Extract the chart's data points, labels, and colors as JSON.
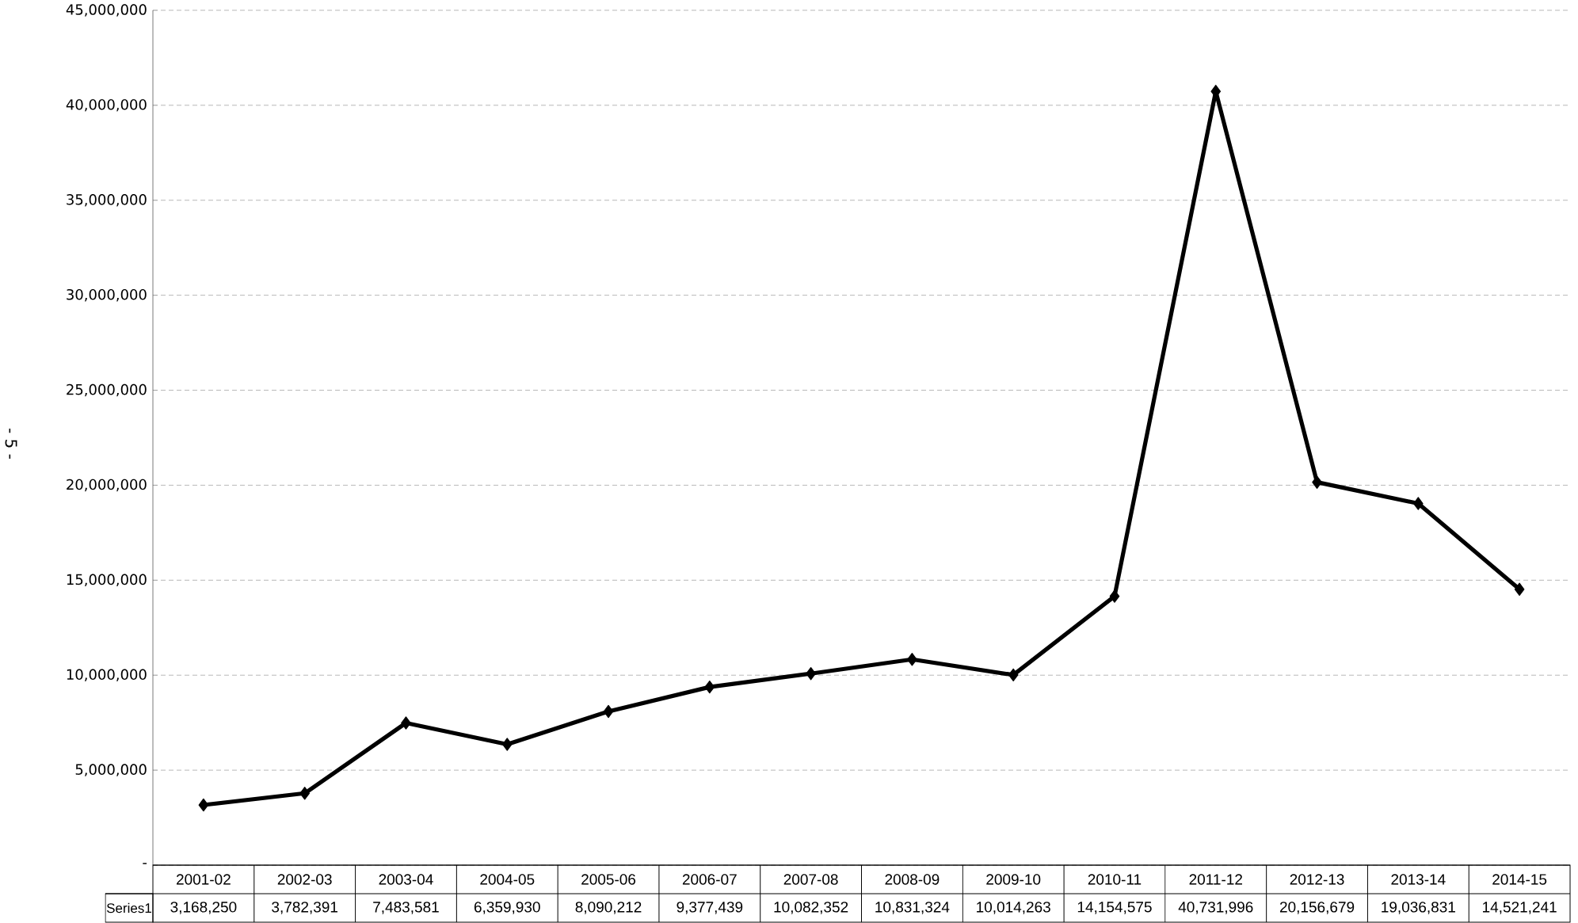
{
  "chart_data": {
    "type": "line",
    "categories": [
      "2001-02",
      "2002-03",
      "2003-04",
      "2004-05",
      "2005-06",
      "2006-07",
      "2007-08",
      "2008-09",
      "2009-10",
      "2010-11",
      "2011-12",
      "2012-13",
      "2013-14",
      "2014-15"
    ],
    "series": [
      {
        "name": "Series1",
        "color": "#000000",
        "values": [
          3168250,
          3782391,
          7483581,
          6359930,
          8090212,
          9377439,
          10082352,
          10831324,
          10014263,
          14154575,
          40731996,
          20156679,
          19036831,
          14521241
        ],
        "value_labels": [
          "3,168,250",
          "3,782,391",
          "7,483,581",
          "6,359,930",
          "8,090,212",
          "9,377,439",
          "10,082,352",
          "10,831,324",
          "10,014,263",
          "14,154,575",
          "40,731,996",
          "20,156,679",
          "19,036,831",
          "14,521,241"
        ]
      }
    ],
    "ylim": [
      0,
      45000000
    ],
    "yticks": [
      {
        "value": 0,
        "label": "-"
      },
      {
        "value": 5000000,
        "label": "5,000,000"
      },
      {
        "value": 10000000,
        "label": "10,000,000"
      },
      {
        "value": 15000000,
        "label": "15,000,000"
      },
      {
        "value": 20000000,
        "label": "20,000,000"
      },
      {
        "value": 25000000,
        "label": "25,000,000"
      },
      {
        "value": 30000000,
        "label": "30,000,000"
      },
      {
        "value": 35000000,
        "label": "35,000,000"
      },
      {
        "value": 40000000,
        "label": "40,000,000"
      },
      {
        "value": 45000000,
        "label": "45,000,000"
      }
    ],
    "grid": "y",
    "marker": "diamond",
    "line_style": "solid",
    "data_labels": true,
    "annotations": [
      "- 5 -"
    ]
  }
}
